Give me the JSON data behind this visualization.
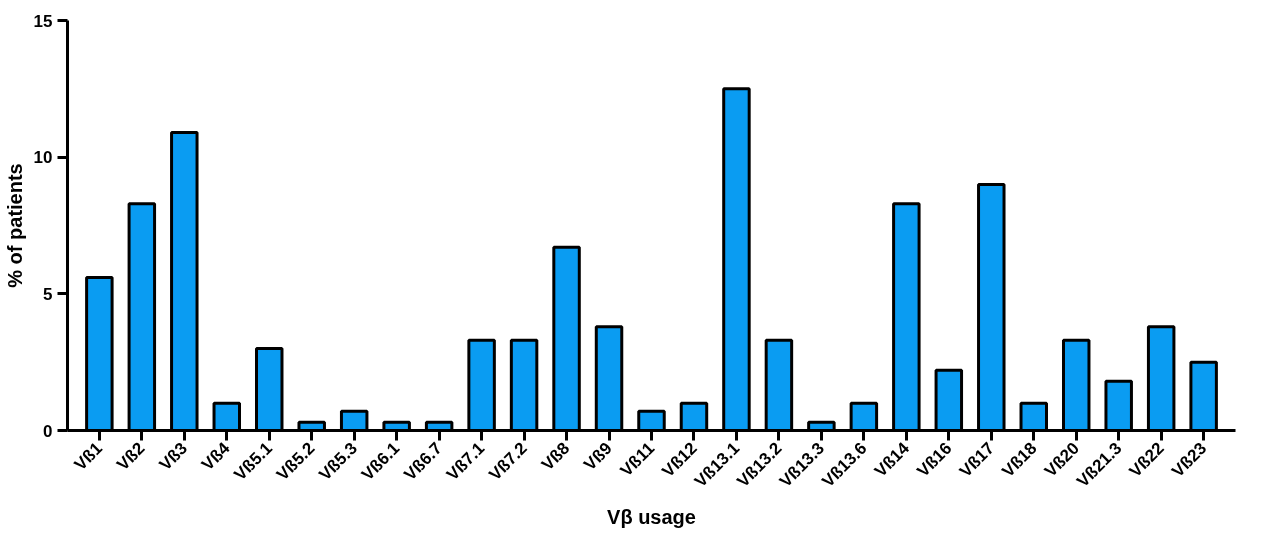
{
  "chart_data": {
    "type": "bar",
    "xlabel": "Vβ usage",
    "ylabel": "% of patients",
    "categories": [
      "Vß1",
      "Vß2",
      "Vß3",
      "Vß4",
      "Vß5.1",
      "Vß5.2",
      "Vß5.3",
      "Vß6.1",
      "Vß6.7",
      "Vß7.1",
      "Vß7.2",
      "Vß8",
      "Vß9",
      "Vß11",
      "Vß12",
      "Vß13.1",
      "Vß13.2",
      "Vß13.3",
      "Vß13.6",
      "Vß14",
      "Vß16",
      "Vß17",
      "Vß18",
      "Vß20",
      "Vß21.3",
      "Vß22",
      "Vß23"
    ],
    "values": [
      5.6,
      8.3,
      10.9,
      1.0,
      3.0,
      0.3,
      0.7,
      0.3,
      0.3,
      3.3,
      3.3,
      6.7,
      3.8,
      0.7,
      1.0,
      12.5,
      3.3,
      0.3,
      1.0,
      8.3,
      2.2,
      9.0,
      1.0,
      3.3,
      1.8,
      3.8,
      2.5
    ],
    "color": "#0a9cf2",
    "ylim": [
      0,
      15
    ],
    "yticks": [
      0,
      5,
      10,
      15
    ],
    "grid": false
  }
}
